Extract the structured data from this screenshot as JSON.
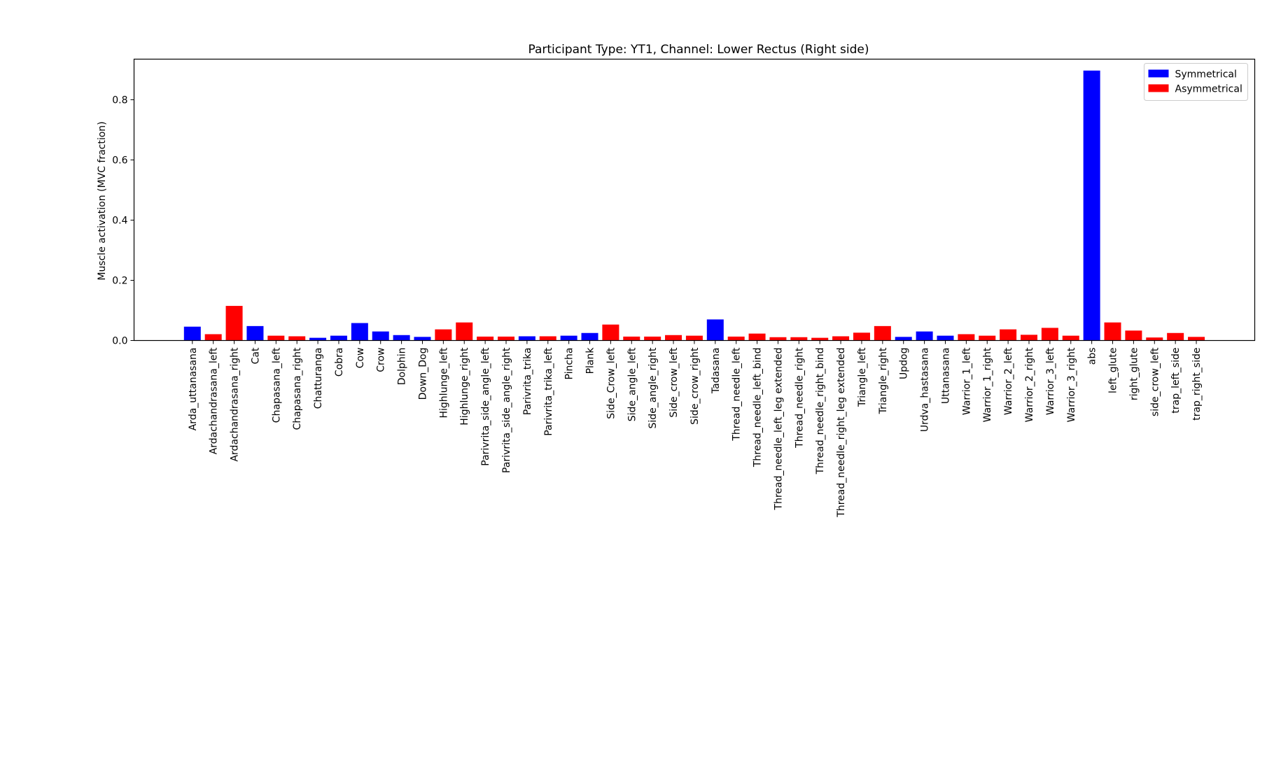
{
  "chart_data": {
    "type": "bar",
    "title": "Participant Type: YT1, Channel: Lower Rectus (Right side)",
    "xlabel": "",
    "ylabel": "Muscle activation (MVC fraction)",
    "ylim": [
      0,
      0.935
    ],
    "yticks": [
      "0.0",
      "0.2",
      "0.4",
      "0.6",
      "0.8"
    ],
    "legend_position": "top-right",
    "series": [
      {
        "name": "Symmetrical",
        "color": "#0000ff"
      },
      {
        "name": "Asymmetrical",
        "color": "#ff0000"
      }
    ],
    "categories": [
      "Arda_uttanasana",
      "Ardachandrasana_left",
      "Ardachandrasana_right",
      "Cat",
      "Chapasana_left",
      "Chapasana_right",
      "Chatturanga",
      "Cobra",
      "Cow",
      "Crow",
      "Dolphin",
      "Down_Dog",
      "Highlunge_left",
      "Highlunge_right",
      "Parivrita_side_angle_left",
      "Parivrita_side_angle_right",
      "Parivrita_trika",
      "Parivrita_trika_left",
      "Pincha",
      "Plank",
      "Side_Crow_left",
      "Side_angle_left",
      "Side_angle_right",
      "Side_crow_left",
      "Side_crow_right",
      "Tadasana",
      "Thread_needle_left",
      "Thread_needle_left_bind",
      "Thread_needle_left_leg extended",
      "Thread_needle_right",
      "Thread_needle_right_bind",
      "Thread_needle_right_leg extended",
      "Triangle_left",
      "Triangle_right",
      "Updog",
      "Urdva_hastasana",
      "Uttanasana",
      "Warrior_1_left",
      "Warrior_1_right",
      "Warrior_2_left",
      "Warrior_2_right",
      "Warrior_3_left",
      "Warrior_3_right",
      "abs",
      "left_glute",
      "right_glute",
      "side_crow_left",
      "trap_left_side",
      "trap_right_side"
    ],
    "values": [
      0.046,
      0.021,
      0.115,
      0.048,
      0.016,
      0.014,
      0.009,
      0.016,
      0.058,
      0.03,
      0.018,
      0.012,
      0.037,
      0.06,
      0.013,
      0.013,
      0.014,
      0.014,
      0.016,
      0.025,
      0.053,
      0.013,
      0.013,
      0.018,
      0.016,
      0.07,
      0.013,
      0.023,
      0.011,
      0.011,
      0.009,
      0.014,
      0.026,
      0.048,
      0.012,
      0.03,
      0.016,
      0.021,
      0.016,
      0.037,
      0.019,
      0.042,
      0.016,
      0.897,
      0.06,
      0.033,
      0.01,
      0.025,
      0.012
    ],
    "groups": [
      "Symmetrical",
      "Asymmetrical",
      "Asymmetrical",
      "Symmetrical",
      "Asymmetrical",
      "Asymmetrical",
      "Symmetrical",
      "Symmetrical",
      "Symmetrical",
      "Symmetrical",
      "Symmetrical",
      "Symmetrical",
      "Asymmetrical",
      "Asymmetrical",
      "Asymmetrical",
      "Asymmetrical",
      "Symmetrical",
      "Asymmetrical",
      "Symmetrical",
      "Symmetrical",
      "Asymmetrical",
      "Asymmetrical",
      "Asymmetrical",
      "Asymmetrical",
      "Asymmetrical",
      "Symmetrical",
      "Asymmetrical",
      "Asymmetrical",
      "Asymmetrical",
      "Asymmetrical",
      "Asymmetrical",
      "Asymmetrical",
      "Asymmetrical",
      "Asymmetrical",
      "Symmetrical",
      "Symmetrical",
      "Symmetrical",
      "Asymmetrical",
      "Asymmetrical",
      "Asymmetrical",
      "Asymmetrical",
      "Asymmetrical",
      "Asymmetrical",
      "Symmetrical",
      "Asymmetrical",
      "Asymmetrical",
      "Asymmetrical",
      "Asymmetrical",
      "Asymmetrical"
    ]
  }
}
